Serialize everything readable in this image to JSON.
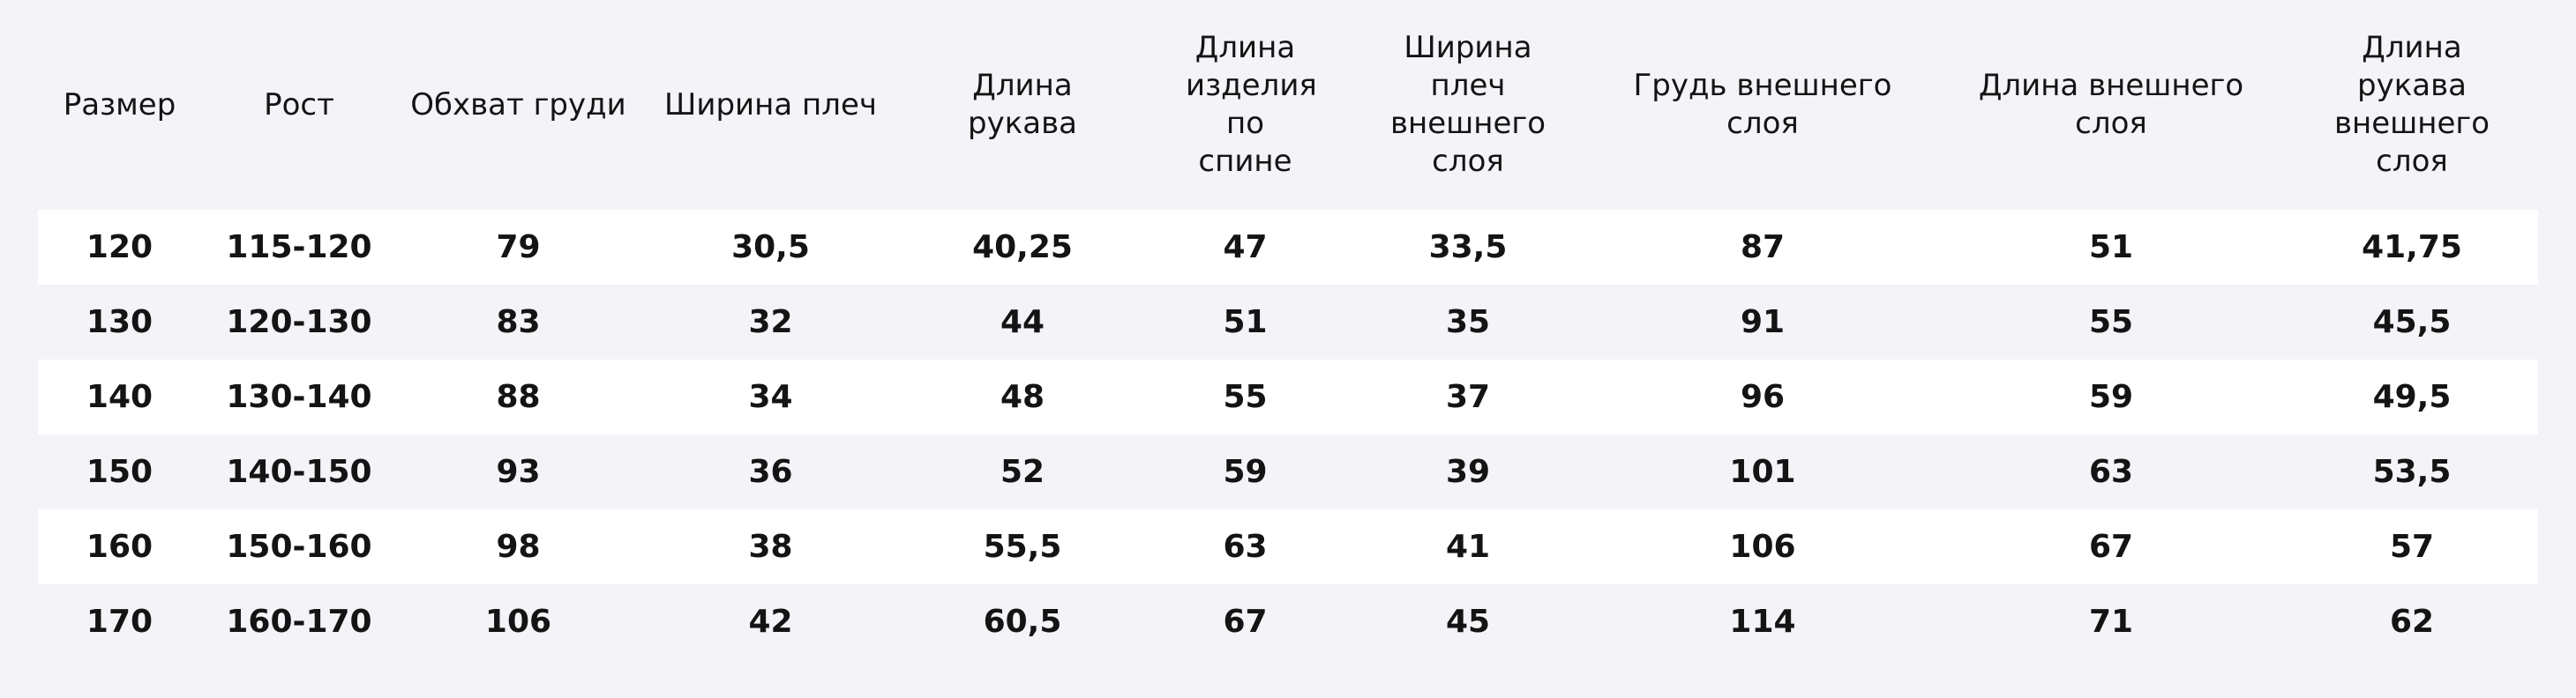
{
  "table": {
    "headers": [
      "Размер",
      "Рост",
      "Обхват груди",
      "Ширина плеч",
      "Длина рукава",
      "Длина изделия по спине",
      "Ширина плеч внешнего слоя",
      "Грудь внешнего слоя",
      "Длина внешнего слоя",
      "Длина рукава внешнего слоя"
    ],
    "rows": [
      [
        "120",
        "115-120",
        "79",
        "30,5",
        "40,25",
        "47",
        "33,5",
        "87",
        "51",
        "41,75"
      ],
      [
        "130",
        "120-130",
        "83",
        "32",
        "44",
        "51",
        "35",
        "91",
        "55",
        "45,5"
      ],
      [
        "140",
        "130-140",
        "88",
        "34",
        "48",
        "55",
        "37",
        "96",
        "59",
        "49,5"
      ],
      [
        "150",
        "140-150",
        "93",
        "36",
        "52",
        "59",
        "39",
        "101",
        "63",
        "53,5"
      ],
      [
        "160",
        "150-160",
        "98",
        "38",
        "55,5",
        "63",
        "41",
        "106",
        "67",
        "57"
      ],
      [
        "170",
        "160-170",
        "106",
        "42",
        "60,5",
        "67",
        "45",
        "114",
        "71",
        "62"
      ]
    ]
  }
}
